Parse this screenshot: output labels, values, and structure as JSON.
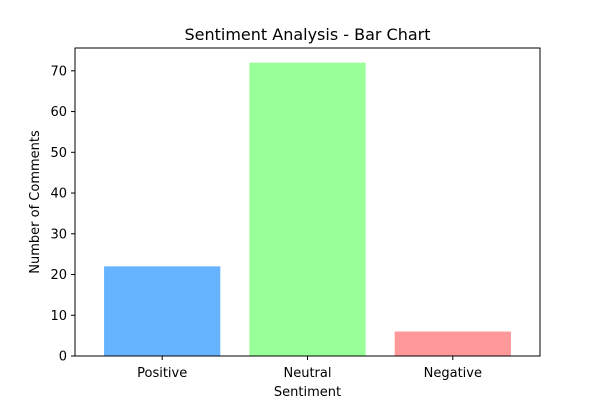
{
  "chart_data": {
    "type": "bar",
    "title": "Sentiment Analysis - Bar Chart",
    "xlabel": "Sentiment",
    "ylabel": "Number of Comments",
    "categories": [
      "Positive",
      "Neutral",
      "Negative"
    ],
    "values": [
      22,
      72,
      6
    ],
    "colors": [
      "#66b3ff",
      "#99ff99",
      "#ff9999"
    ],
    "ylim": [
      0,
      75.6
    ],
    "yticks": [
      0,
      10,
      20,
      30,
      40,
      50,
      60,
      70
    ],
    "ytick_labels": [
      "0",
      "10",
      "20",
      "30",
      "40",
      "50",
      "60",
      "70"
    ],
    "grid": false,
    "legend": "none"
  }
}
